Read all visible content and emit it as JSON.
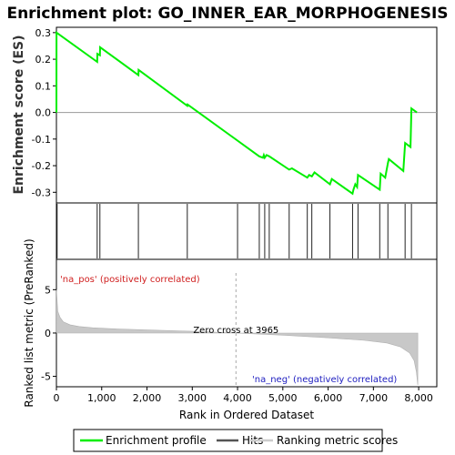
{
  "chart_data": {
    "type": "line",
    "title": "Enrichment plot: GO_INNER_EAR_MORPHOGENESIS",
    "top_panel": {
      "ylabel": "Enrichment score (ES)",
      "ylim": [
        -0.34,
        0.32
      ],
      "yticks": [
        0.3,
        0.2,
        0.1,
        0.0,
        -0.1,
        -0.2,
        -0.3
      ],
      "ytick_labels": [
        "0.3",
        "0.2",
        "0.1",
        "0.0",
        "-0.1",
        "-0.2",
        "-0.3"
      ],
      "series": [
        {
          "name": "Enrichment profile",
          "color": "#00ee00",
          "x": [
            0,
            3,
            900,
            905,
            960,
            965,
            1810,
            1815,
            2890,
            2895,
            4480,
            4560,
            4580,
            4600,
            4640,
            4700,
            5140,
            5200,
            5540,
            5580,
            5640,
            5700,
            6040,
            6080,
            6540,
            6560,
            6600,
            6640,
            6660,
            7140,
            7160,
            7260,
            7320,
            7340,
            7660,
            7700,
            7820,
            7840,
            7960
          ],
          "y": [
            0.0,
            0.3,
            0.19,
            0.22,
            0.215,
            0.245,
            0.14,
            0.16,
            0.025,
            0.03,
            -0.165,
            -0.17,
            -0.16,
            -0.17,
            -0.16,
            -0.165,
            -0.215,
            -0.21,
            -0.245,
            -0.235,
            -0.24,
            -0.225,
            -0.27,
            -0.25,
            -0.305,
            -0.29,
            -0.27,
            -0.28,
            -0.235,
            -0.29,
            -0.23,
            -0.245,
            -0.19,
            -0.175,
            -0.22,
            -0.115,
            -0.13,
            0.015,
            0.0
          ]
        }
      ]
    },
    "hits_panel": {
      "name": "Hits",
      "hit_positions": [
        15,
        900,
        960,
        1810,
        2890,
        4000,
        4480,
        4600,
        4700,
        5140,
        5540,
        5640,
        6040,
        6540,
        6660,
        7140,
        7320,
        7700,
        7840
      ]
    },
    "ranking_panel": {
      "name": "Ranking metric scores",
      "ylabel": "Ranked list metric (PreRanked)",
      "ylim": [
        -6.2,
        8.5
      ],
      "yticks": [
        5,
        0,
        -5
      ],
      "ytick_labels": [
        "5",
        "0",
        "-5"
      ],
      "profile": {
        "x": [
          0,
          30,
          80,
          150,
          300,
          500,
          800,
          1200,
          2000,
          3000,
          3965,
          5000,
          6000,
          6800,
          7300,
          7600,
          7800,
          7900,
          7950,
          7980
        ],
        "y": [
          5.0,
          2.5,
          1.8,
          1.3,
          0.95,
          0.75,
          0.6,
          0.5,
          0.35,
          0.2,
          0.0,
          -0.25,
          -0.55,
          -0.85,
          -1.15,
          -1.6,
          -2.3,
          -3.2,
          -4.5,
          -6.0
        ]
      },
      "zero_cross": 3965,
      "zero_cross_label": "Zero cross at 3965",
      "pos_label": "'na_pos' (positively correlated)",
      "neg_label": "'na_neg' (negatively correlated)"
    },
    "heat_bar": {
      "segments": [
        {
          "start": 0,
          "end": 1300,
          "color": "#f45a5a"
        },
        {
          "start": 1300,
          "end": 2150,
          "color": "#f47a7a"
        },
        {
          "start": 2150,
          "end": 3000,
          "color": "#f79a9a"
        },
        {
          "start": 3000,
          "end": 3965,
          "color": "#fbc8e0"
        },
        {
          "start": 3965,
          "end": 4500,
          "color": "#dcdaf6"
        },
        {
          "start": 4500,
          "end": 5900,
          "color": "#c8c8f4"
        },
        {
          "start": 5900,
          "end": 6450,
          "color": "#9a94ee"
        },
        {
          "start": 6450,
          "end": 7700,
          "color": "#6a5ae8"
        },
        {
          "start": 7700,
          "end": 7980,
          "color": "#3a1acc"
        }
      ]
    },
    "xaxis": {
      "xlabel": "Rank in Ordered Dataset",
      "xlim": [
        0,
        8400
      ],
      "xticks": [
        0,
        1000,
        2000,
        3000,
        4000,
        5000,
        6000,
        7000,
        8000
      ],
      "xtick_labels": [
        "0",
        "1,000",
        "2,000",
        "3,000",
        "4,000",
        "5,000",
        "6,000",
        "7,000",
        "8,000"
      ]
    },
    "legend": {
      "placement": "bottom",
      "entries": [
        {
          "label": "Enrichment profile",
          "color": "#00ee00"
        },
        {
          "label": "Hits",
          "color": "#555555"
        },
        {
          "label": "Ranking metric scores",
          "color": "#cccccc"
        }
      ]
    }
  }
}
